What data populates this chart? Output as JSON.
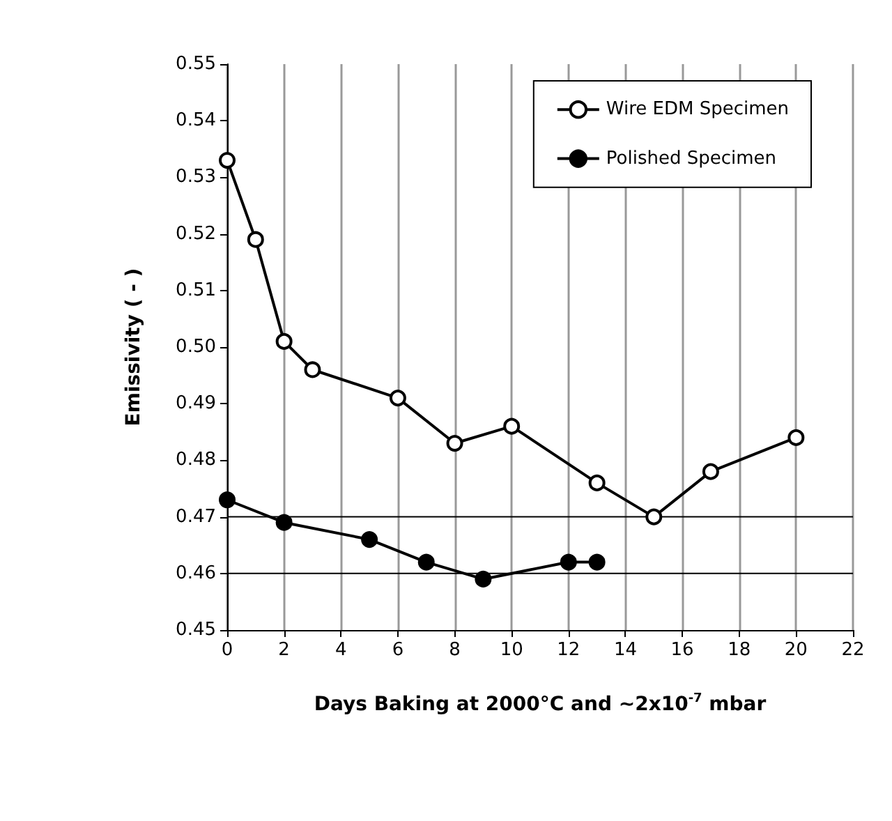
{
  "chart_data": {
    "type": "line",
    "xlabel": "Days Baking at 2000°C and ~2x10$^{-7}$ mbar",
    "ylabel": "Emissivity ( - )",
    "xlim": [
      0,
      22
    ],
    "xticks": [
      0,
      2,
      4,
      6,
      8,
      10,
      12,
      14,
      16,
      18,
      20,
      22
    ],
    "ylim": [
      0.45,
      0.55
    ],
    "yticks": [
      {
        "value": 0.45,
        "label": "0.45"
      },
      {
        "value": 0.46,
        "label": "0.46"
      },
      {
        "value": 0.47,
        "label": "0.47"
      },
      {
        "value": 0.48,
        "label": "0.48"
      },
      {
        "value": 0.49,
        "label": "0.49"
      },
      {
        "value": 0.5,
        "label": "0.50"
      },
      {
        "value": 0.51,
        "label": "0.51"
      },
      {
        "value": 0.52,
        "label": "0.52"
      },
      {
        "value": 0.53,
        "label": "0.53"
      },
      {
        "value": 0.54,
        "label": "0.54"
      },
      {
        "value": 0.55,
        "label": "0.55"
      }
    ],
    "grid": "x",
    "legend": "top right",
    "ref_lines": [
      {
        "axis": "y",
        "value": 0.46,
        "color": "#000000"
      },
      {
        "axis": "y",
        "value": 0.47,
        "color": "#000000"
      }
    ],
    "series": [
      {
        "name": "Wire EDM Specimen",
        "color": "#000000",
        "marker": "circle-open",
        "x": [
          0,
          1,
          2,
          3,
          6,
          8,
          10,
          13,
          15,
          17,
          20
        ],
        "values": [
          0.533,
          0.519,
          0.501,
          0.496,
          0.491,
          0.483,
          0.486,
          0.476,
          0.47,
          0.478,
          0.484
        ]
      },
      {
        "name": "Polished Specimen",
        "color": "#000000",
        "marker": "circle",
        "x": [
          0,
          2,
          5,
          7,
          9,
          12,
          13
        ],
        "values": [
          0.473,
          0.469,
          0.466,
          0.462,
          0.459,
          0.462,
          0.462
        ]
      }
    ]
  }
}
